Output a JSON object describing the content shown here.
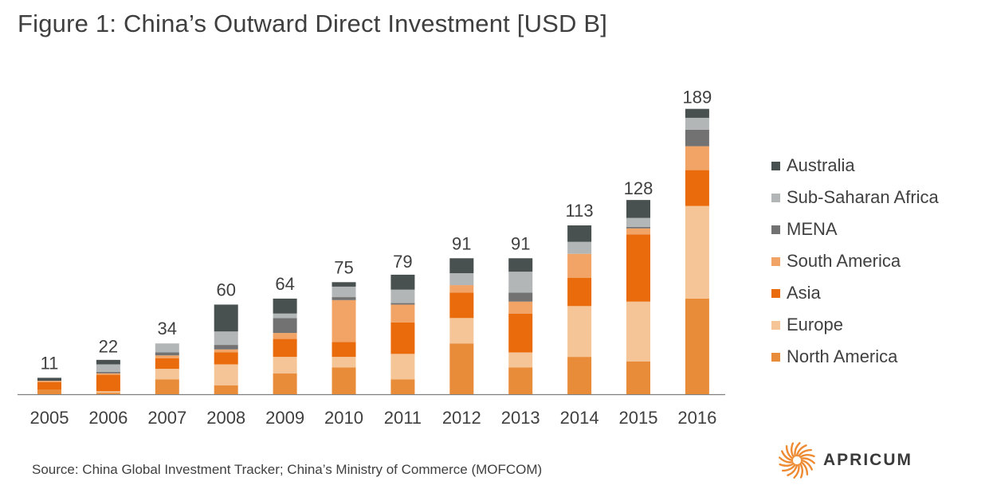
{
  "chart_data": {
    "type": "bar",
    "stacked": true,
    "title": "Figure 1: China’s Outward Direct Investment [USD B]",
    "categories": [
      "2005",
      "2006",
      "2007",
      "2008",
      "2009",
      "2010",
      "2011",
      "2012",
      "2013",
      "2014",
      "2015",
      "2016"
    ],
    "totals": [
      11,
      22,
      34,
      60,
      64,
      75,
      79,
      91,
      91,
      113,
      128,
      189
    ],
    "series": [
      {
        "name": "North America",
        "color": "#e98c3a",
        "values": [
          3,
          1,
          10,
          6,
          14,
          18,
          10,
          34,
          18,
          25,
          22,
          64
        ]
      },
      {
        "name": "Europe",
        "color": "#f5c597",
        "values": [
          0,
          1,
          7,
          14,
          11,
          7,
          17,
          17,
          10,
          34,
          40,
          62
        ]
      },
      {
        "name": "Asia",
        "color": "#ea6b0c",
        "values": [
          5,
          11,
          7,
          8,
          12,
          10,
          21,
          17,
          26,
          19,
          45,
          24
        ]
      },
      {
        "name": "South America",
        "color": "#f2a466",
        "values": [
          1,
          1,
          2,
          2,
          4,
          28,
          12,
          5,
          8,
          16,
          4,
          16
        ]
      },
      {
        "name": "MENA",
        "color": "#727272",
        "values": [
          0,
          1,
          2,
          3,
          10,
          2,
          1,
          0,
          6,
          0,
          1,
          11
        ]
      },
      {
        "name": "Sub-Saharan Africa",
        "color": "#b3b6b7",
        "values": [
          0,
          5,
          6,
          9,
          3,
          7,
          9,
          8,
          14,
          8,
          6,
          8
        ]
      },
      {
        "name": "Australia",
        "color": "#495050",
        "values": [
          2,
          3,
          0,
          18,
          10,
          3,
          10,
          10,
          9,
          11,
          12,
          6
        ]
      }
    ],
    "legend_order": [
      "Australia",
      "Sub-Saharan Africa",
      "MENA",
      "South America",
      "Asia",
      "Europe",
      "North America"
    ],
    "legend_position": "right",
    "ylim": [
      0,
      200
    ],
    "grid": false,
    "xlabel": "",
    "ylabel": ""
  },
  "source": "Source: China Global Investment Tracker; China’s Ministry of Commerce (MOFCOM)",
  "logo": {
    "text": "APRICUM",
    "color": "#ee8a32"
  }
}
